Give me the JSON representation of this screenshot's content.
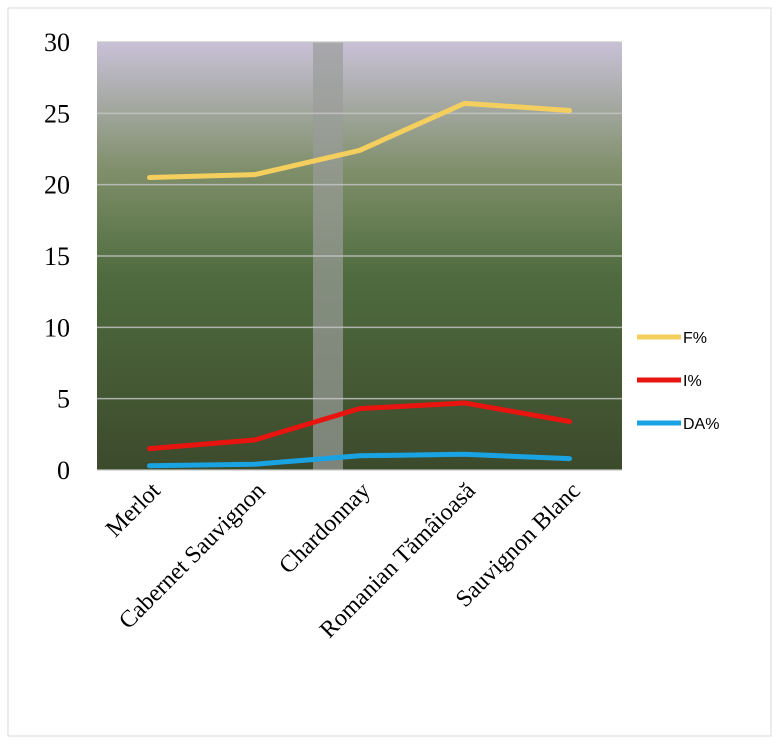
{
  "chart_data": {
    "type": "line",
    "categories": [
      "Merlot",
      "Cabernet Sauvignon",
      "Chardonnay",
      "Romanian Tămâioasă",
      "Sauvignon Blanc"
    ],
    "series": [
      {
        "name": "F%",
        "color": "#f5cf5e",
        "values": [
          20.5,
          20.7,
          22.4,
          25.7,
          25.2
        ]
      },
      {
        "name": "I%",
        "color": "#e8140f",
        "values": [
          1.5,
          2.1,
          4.3,
          4.7,
          3.4
        ]
      },
      {
        "name": "DA%",
        "color": "#1aa3e3",
        "values": [
          0.3,
          0.4,
          1.0,
          1.1,
          0.8
        ]
      }
    ],
    "ylim": [
      0,
      30
    ],
    "yticks": [
      0,
      5,
      10,
      15,
      20,
      25,
      30
    ],
    "grid": true,
    "legend": "right"
  }
}
